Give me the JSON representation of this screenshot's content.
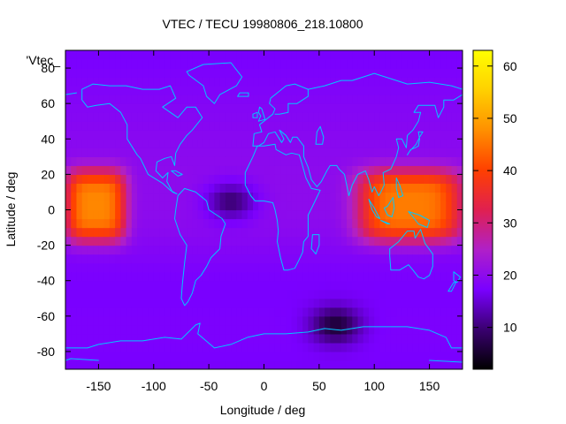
{
  "chart_data": {
    "type": "heatmap",
    "title": "VTEC / TECU 19980806_218.10800",
    "xlabel": "Longitude / deg",
    "ylabel": "Latitude / deg",
    "key_label": "'Vtec_",
    "xlim": [
      -180,
      180
    ],
    "ylim": [
      -90,
      90
    ],
    "xticks": [
      -150,
      -100,
      -50,
      0,
      50,
      100,
      150
    ],
    "yticks": [
      -80,
      -60,
      -40,
      -20,
      0,
      20,
      40,
      60,
      80
    ],
    "colorbar": {
      "range": [
        2,
        63
      ],
      "ticks": [
        10,
        20,
        30,
        40,
        50,
        60
      ],
      "palette": "black-purple-red-orange-yellow",
      "colors": [
        "#000000",
        "#3a0070",
        "#7a00ff",
        "#b020c8",
        "#e02050",
        "#ff4000",
        "#ff9000",
        "#ffd000",
        "#ffff00"
      ]
    },
    "grid": false,
    "features": [
      {
        "name": "equatorial-anomaly-pacific",
        "lon_range": [
          -180,
          -125
        ],
        "lat_range": [
          -20,
          25
        ],
        "vtec": 44
      },
      {
        "name": "equatorial-anomaly-asia",
        "lon_range": [
          85,
          180
        ],
        "lat_range": [
          -20,
          25
        ],
        "vtec": 43
      },
      {
        "name": "atlantic-minimum",
        "lon": -30,
        "lat": 5,
        "vtec": 5
      },
      {
        "name": "antarctic-minimum",
        "lon": 65,
        "lat": -65,
        "vtec": 3
      },
      {
        "name": "background",
        "vtec": 17
      }
    ],
    "coastlines": "world-continents"
  }
}
